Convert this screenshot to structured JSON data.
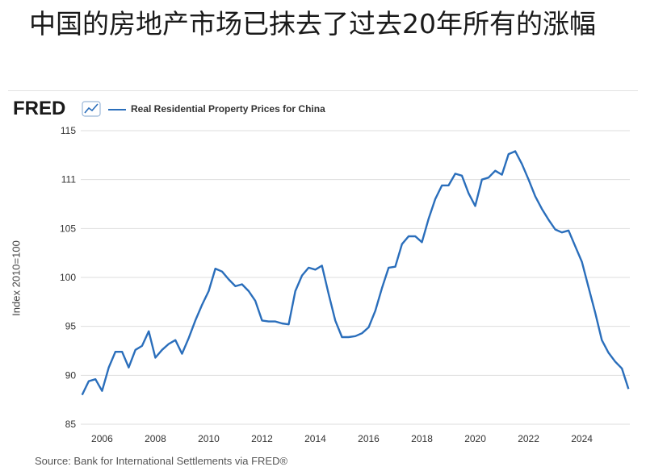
{
  "headline": "中国的房地产市场已抹去了过去20年所有的涨幅",
  "brand": {
    "logo_text": "FRED",
    "logo_icon": "chart-line-icon"
  },
  "footer": {
    "source": "Source: Bank for International Settlements via FRED®"
  },
  "colors": {
    "series": "#2a6ebb",
    "grid": "#dddddd",
    "axis_text": "#333333"
  },
  "chart_data": {
    "type": "line",
    "title": "",
    "legend": "Real Residential Property Prices for China",
    "legend_position": "top-left",
    "xlabel": "",
    "ylabel": "Index 2010=100",
    "xlim": [
      2005.2,
      2025.8
    ],
    "ylim": [
      85,
      115
    ],
    "y_ticks": [
      85,
      90,
      95,
      100,
      105,
      "111",
      115
    ],
    "x_ticks": [
      2006,
      2008,
      2010,
      2012,
      2014,
      2016,
      2018,
      2020,
      2022,
      2024
    ],
    "grid": "horizontal",
    "series": [
      {
        "name": "Real Residential Property Prices for China",
        "x": [
          2005.25,
          2005.5,
          2005.75,
          2006.0,
          2006.25,
          2006.5,
          2006.75,
          2007.0,
          2007.25,
          2007.5,
          2007.75,
          2008.0,
          2008.25,
          2008.5,
          2008.75,
          2009.0,
          2009.25,
          2009.5,
          2009.75,
          2010.0,
          2010.25,
          2010.5,
          2010.75,
          2011.0,
          2011.25,
          2011.5,
          2011.75,
          2012.0,
          2012.25,
          2012.5,
          2012.75,
          2013.0,
          2013.25,
          2013.5,
          2013.75,
          2014.0,
          2014.25,
          2014.5,
          2014.75,
          2015.0,
          2015.25,
          2015.5,
          2015.75,
          2016.0,
          2016.25,
          2016.5,
          2016.75,
          2017.0,
          2017.25,
          2017.5,
          2017.75,
          2018.0,
          2018.25,
          2018.5,
          2018.75,
          2019.0,
          2019.25,
          2019.5,
          2019.75,
          2020.0,
          2020.25,
          2020.5,
          2020.75,
          2021.0,
          2021.25,
          2021.5,
          2021.75,
          2022.0,
          2022.25,
          2022.5,
          2022.75,
          2023.0,
          2023.25,
          2023.5,
          2023.75,
          2024.0,
          2024.25,
          2024.5,
          2024.75,
          2025.0,
          2025.25,
          2025.5,
          2025.75
        ],
        "values": [
          88.0,
          89.4,
          89.6,
          88.4,
          90.8,
          92.4,
          92.4,
          90.8,
          92.6,
          93.0,
          94.5,
          91.8,
          92.6,
          93.2,
          93.6,
          92.2,
          93.8,
          95.6,
          97.2,
          98.6,
          100.9,
          100.6,
          99.8,
          99.1,
          99.3,
          98.6,
          97.6,
          95.6,
          95.5,
          95.5,
          95.3,
          95.2,
          98.6,
          100.2,
          101.0,
          100.8,
          101.2,
          98.3,
          95.6,
          93.9,
          93.9,
          94.0,
          94.3,
          94.9,
          96.6,
          98.9,
          101.0,
          101.1,
          103.4,
          104.2,
          104.2,
          103.6,
          106.0,
          108.0,
          109.4,
          109.4,
          110.6,
          110.4,
          108.6,
          107.3,
          110.0,
          110.2,
          110.9,
          110.5,
          112.6,
          112.9,
          111.6,
          110.0,
          108.3,
          107.0,
          105.9,
          104.9,
          104.6,
          104.8,
          103.2,
          101.6,
          99.0,
          96.4,
          93.6,
          92.3,
          91.4,
          90.7,
          88.6
        ]
      }
    ]
  }
}
